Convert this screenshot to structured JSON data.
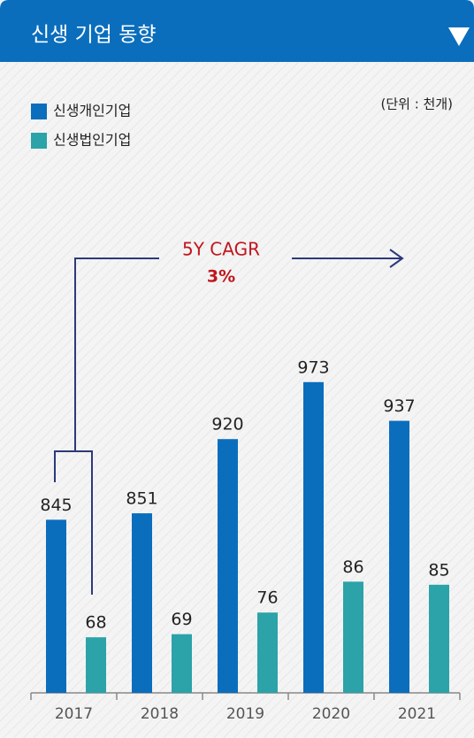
{
  "chart_data": {
    "type": "bar",
    "title": "신생 기업 동향",
    "unit_label": "(단위 : 천개)",
    "categories": [
      "2017",
      "2018",
      "2019",
      "2020",
      "2021"
    ],
    "series": [
      {
        "name": "신생개인기업",
        "color": "#0a6ebd",
        "values": [
          845,
          851,
          920,
          973,
          937
        ]
      },
      {
        "name": "신생법인기업",
        "color": "#2ba3a8",
        "values": [
          68,
          69,
          76,
          86,
          85
        ],
        "axis": "y2"
      }
    ],
    "ylim": [
      684,
      1000
    ],
    "y2lim": [
      50,
      160
    ],
    "annotation": {
      "label": "5Y CAGR",
      "value": "3%"
    }
  }
}
